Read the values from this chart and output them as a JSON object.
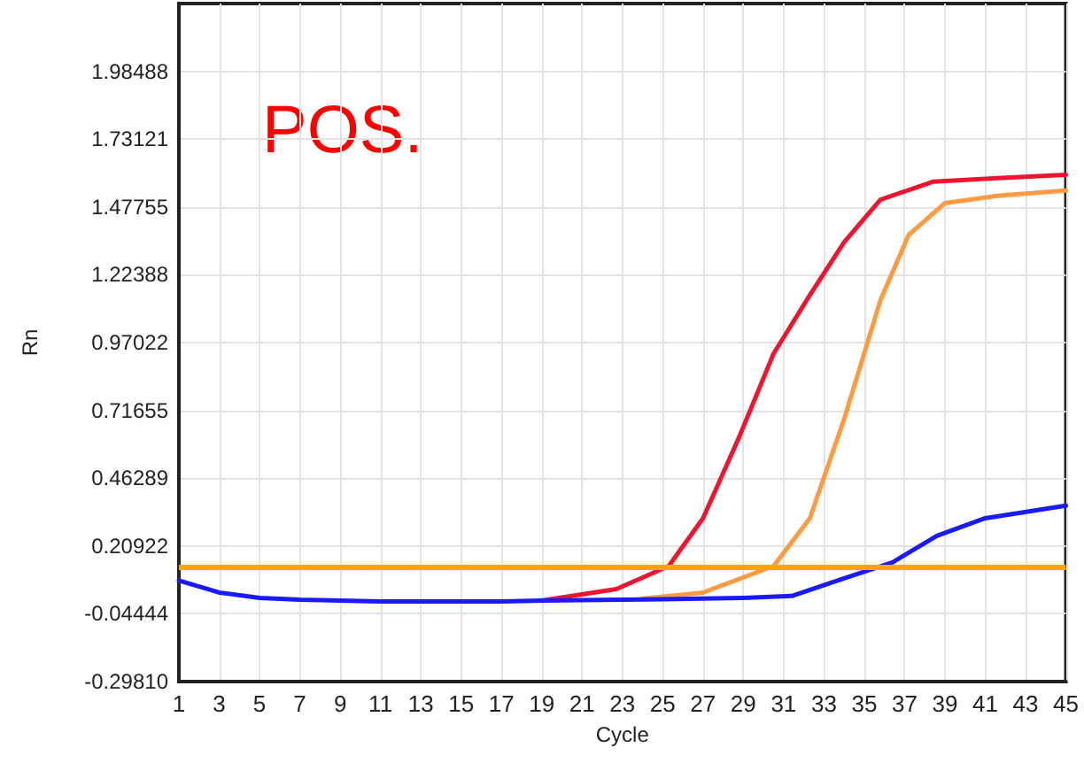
{
  "chart_data": {
    "type": "line",
    "xlabel": "Cycle",
    "ylabel": "Rn",
    "annotations": [
      "POS."
    ],
    "xlim": [
      1,
      45
    ],
    "xticks": [
      1,
      3,
      5,
      7,
      9,
      11,
      13,
      15,
      17,
      19,
      21,
      23,
      25,
      27,
      29,
      31,
      33,
      35,
      37,
      39,
      41,
      43,
      45
    ],
    "ylim": [
      -0.2981,
      2.23854
    ],
    "yticks": [
      {
        "value": -0.2981,
        "label": "-0.29810"
      },
      -0.04444,
      0.20922,
      0.46289,
      0.71655,
      0.97022,
      1.22388,
      1.47755,
      1.73121,
      1.98488
    ],
    "grid": true,
    "marker": "none",
    "line_style": "solid",
    "ref_lines": [
      {
        "axis": "y",
        "value": 0.134,
        "color": "#ffa500"
      }
    ],
    "series": [
      {
        "color": "#f0142e",
        "x": [
          19,
          22.7,
          25.3,
          27,
          28.8,
          30.5,
          32.3,
          34,
          35.8,
          38.4,
          41.6,
          45
        ],
        "values": [
          0.005,
          0.048,
          0.134,
          0.313,
          0.618,
          0.929,
          1.148,
          1.346,
          1.505,
          1.572,
          1.585,
          1.598
        ]
      },
      {
        "color": "#ff9a40",
        "x": [
          24,
          27,
          30.5,
          32.3,
          34,
          35.8,
          37.2,
          39,
          41.6,
          45
        ],
        "values": [
          0.012,
          0.035,
          0.134,
          0.313,
          0.684,
          1.128,
          1.373,
          1.492,
          1.519,
          1.539
        ]
      },
      {
        "color": "#1a1aff",
        "x": [
          1,
          3,
          5,
          7,
          11,
          17,
          19,
          25,
          29,
          31.4,
          34,
          36.4,
          38.6,
          41,
          45
        ],
        "values": [
          0.08,
          0.035,
          0.015,
          0.008,
          0.002,
          0.002,
          0.005,
          0.01,
          0.015,
          0.022,
          0.088,
          0.148,
          0.247,
          0.313,
          0.36
        ]
      }
    ]
  }
}
